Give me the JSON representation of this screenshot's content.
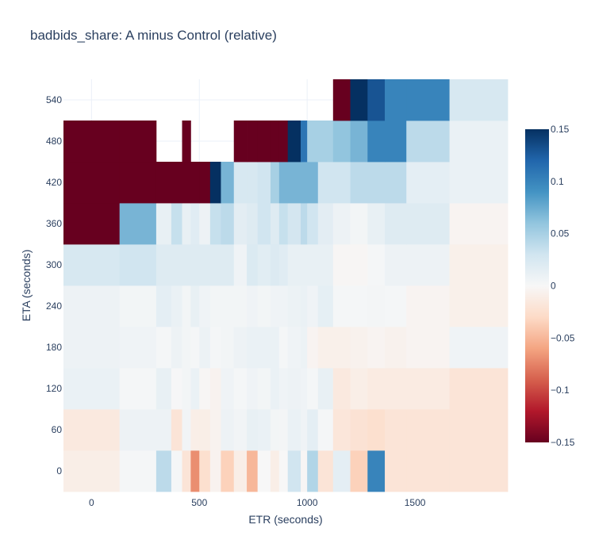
{
  "chart_data": {
    "type": "heatmap",
    "title": "badbids_share: A minus Control (relative)",
    "xlabel": "ETR (seconds)",
    "ylabel": "ETA (seconds)",
    "xlim": [
      -130,
      1930
    ],
    "ylim": [
      -30,
      570
    ],
    "x_ticks": [
      0,
      500,
      1000,
      1500
    ],
    "x_tick_labels": [
      "0",
      "500",
      "1000",
      "1500"
    ],
    "y_ticks": [
      0,
      60,
      120,
      180,
      240,
      300,
      360,
      420,
      480,
      540
    ],
    "y_tick_labels": [
      "0",
      "60",
      "120",
      "180",
      "240",
      "300",
      "360",
      "420",
      "480",
      "540"
    ],
    "x_edges": [
      -130,
      130,
      300,
      370,
      420,
      460,
      500,
      550,
      600,
      660,
      720,
      770,
      830,
      870,
      910,
      970,
      1000,
      1050,
      1120,
      1200,
      1280,
      1360,
      1460,
      1660,
      1930
    ],
    "y_edges": [
      -30,
      30,
      90,
      150,
      210,
      270,
      330,
      390,
      450,
      510,
      570
    ],
    "z": [
      [
        -0.01,
        0.002,
        0.04,
        0.002,
        -0.02,
        -0.07,
        -0.025,
        -0.005,
        -0.035,
        -0.01,
        -0.05,
        0.0,
        -0.01,
        0.0,
        0.03,
        -0.002,
        0.045,
        -0.02,
        0.015,
        -0.035,
        0.1,
        -0.02,
        -0.02,
        -0.02
      ],
      [
        -0.015,
        0.008,
        0.008,
        -0.02,
        0.005,
        -0.01,
        -0.01,
        -0.005,
        0.008,
        0.005,
        0.012,
        0.01,
        0.004,
        0.003,
        0.01,
        0.006,
        0.015,
        0.002,
        -0.018,
        -0.022,
        -0.025,
        -0.02,
        -0.02,
        -0.02
      ],
      [
        0.01,
        0.002,
        0.012,
        0.001,
        0.004,
        0.01,
        -0.002,
        -0.005,
        0.006,
        0.002,
        0.006,
        0.004,
        0.01,
        0.006,
        0.008,
        0.006,
        0.002,
        0.012,
        -0.015,
        -0.01,
        -0.013,
        -0.013,
        -0.013,
        -0.02
      ],
      [
        0.008,
        0.006,
        0.002,
        0.008,
        0.004,
        0.002,
        0.009,
        0.002,
        0.004,
        0.008,
        0.01,
        0.01,
        0.01,
        0.002,
        0.006,
        0.009,
        -0.004,
        -0.008,
        -0.008,
        -0.006,
        -0.004,
        -0.006,
        -0.004,
        0.006
      ],
      [
        0.008,
        0.004,
        0.015,
        0.01,
        0.004,
        0.012,
        0.006,
        0.004,
        0.004,
        0.004,
        0.006,
        0.004,
        0.006,
        0.006,
        0.009,
        0.01,
        0.006,
        0.014,
        0.002,
        0.002,
        0.003,
        0.002,
        -0.004,
        -0.008
      ],
      [
        0.025,
        0.03,
        0.02,
        0.02,
        0.02,
        0.02,
        0.02,
        0.02,
        0.02,
        0.006,
        0.022,
        0.017,
        0.021,
        0.018,
        0.012,
        0.012,
        0.012,
        0.012,
        -0.002,
        -0.002,
        0.002,
        0.008,
        0.008,
        -0.008
      ],
      [
        -0.15,
        0.07,
        0.012,
        0.035,
        0.012,
        0.018,
        0.008,
        0.035,
        0.04,
        0.016,
        0.02,
        0.03,
        0.02,
        0.035,
        0.028,
        0.04,
        0.03,
        0.016,
        0.008,
        0.004,
        0.012,
        0.02,
        0.02,
        -0.004
      ],
      [
        -0.15,
        -0.15,
        -0.15,
        -0.15,
        -0.15,
        -0.15,
        -0.15,
        0.15,
        0.07,
        0.025,
        0.025,
        0.03,
        0.05,
        0.07,
        0.07,
        0.07,
        0.07,
        0.03,
        0.03,
        0.04,
        0.04,
        0.04,
        0.015,
        0.01
      ],
      [
        -0.15,
        -0.15,
        null,
        null,
        -0.15,
        null,
        null,
        null,
        null,
        -0.15,
        -0.15,
        -0.15,
        -0.15,
        -0.15,
        0.15,
        0.11,
        0.05,
        0.05,
        0.06,
        0.07,
        0.1,
        0.1,
        0.04,
        0.01
      ],
      [
        null,
        null,
        null,
        null,
        null,
        null,
        null,
        null,
        null,
        null,
        null,
        null,
        null,
        null,
        null,
        null,
        null,
        null,
        -0.15,
        0.15,
        0.13,
        0.1,
        0.1,
        0.025
      ]
    ],
    "zmin": -0.15,
    "zmax": 0.15,
    "colorscale": [
      [
        0.0,
        "#67001f"
      ],
      [
        0.1,
        "#b2182b"
      ],
      [
        0.2,
        "#d6604d"
      ],
      [
        0.3,
        "#f4a582"
      ],
      [
        0.4,
        "#fddbc7"
      ],
      [
        0.5,
        "#f7f7f7"
      ],
      [
        0.6,
        "#d1e5f0"
      ],
      [
        0.7,
        "#92c5de"
      ],
      [
        0.8,
        "#4393c3"
      ],
      [
        0.9,
        "#2166ac"
      ],
      [
        1.0,
        "#053061"
      ]
    ],
    "colorbar_ticks": [
      0.15,
      0.1,
      0.05,
      0,
      -0.05,
      -0.1,
      -0.15
    ],
    "colorbar_tick_labels": [
      "0.15",
      "0.1",
      "0.05",
      "0",
      "−0.05",
      "−0.1",
      "−0.15"
    ],
    "grid": true
  }
}
